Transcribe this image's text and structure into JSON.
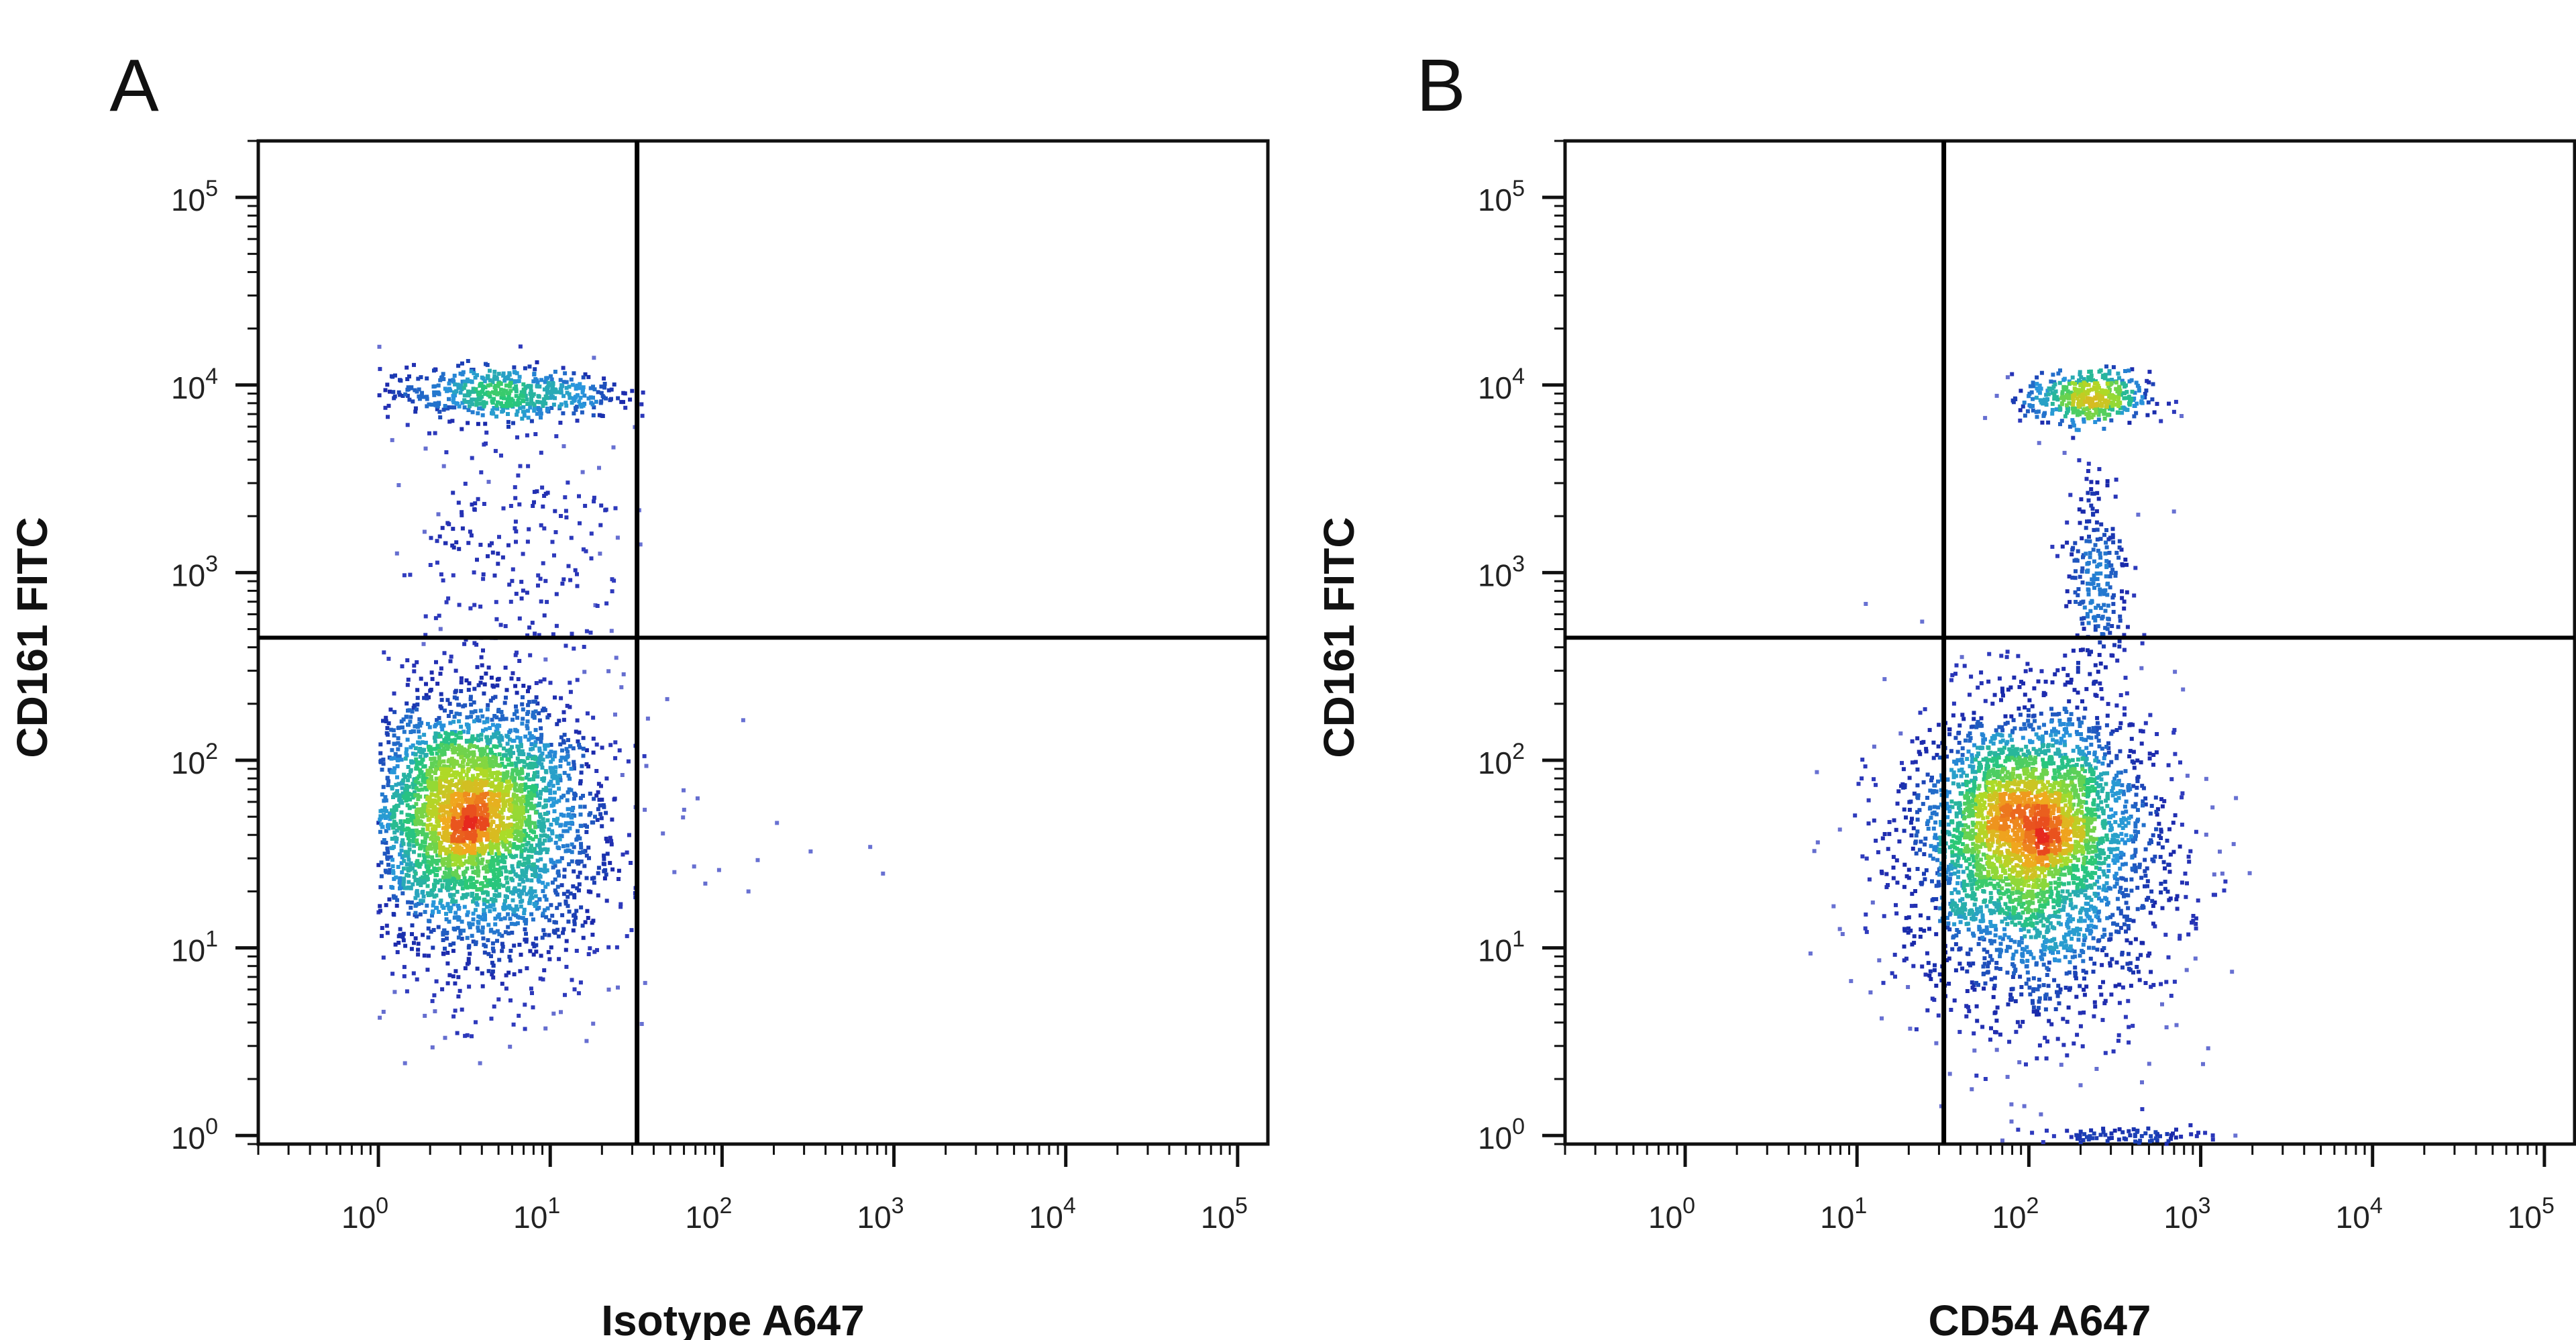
{
  "chart_data": [
    {
      "type": "scatter",
      "panel_label": "A",
      "xlabel": "Isotype A647",
      "ylabel": "CD161 FITC",
      "x_scale": "log",
      "y_scale": "log",
      "x_range": [
        0.2,
        150000
      ],
      "y_range": [
        0.9,
        200000
      ],
      "x_ticks": [
        1,
        10,
        100,
        1000,
        10000,
        100000
      ],
      "x_tick_labels": [
        [
          "10",
          "0"
        ],
        [
          "10",
          "1"
        ],
        [
          "10",
          "2"
        ],
        [
          "10",
          "3"
        ],
        [
          "10",
          "4"
        ],
        [
          "10",
          "5"
        ]
      ],
      "y_ticks": [
        1,
        10,
        100,
        1000,
        10000,
        100000
      ],
      "y_tick_labels": [
        [
          "10",
          "0"
        ],
        [
          "10",
          "1"
        ],
        [
          "10",
          "2"
        ],
        [
          "10",
          "3"
        ],
        [
          "10",
          "4"
        ],
        [
          "10",
          "5"
        ]
      ],
      "quadrant_gate": {
        "x": 32,
        "y": 450
      },
      "populations": [
        {
          "cx": 3.2,
          "cy": 55,
          "sx": 0.3,
          "sy": 0.28,
          "n": 2200,
          "xmin": 1.0,
          "xmax": 36
        },
        {
          "cx": 4.5,
          "cy": 35,
          "sx": 0.38,
          "sy": 0.42,
          "n": 1400,
          "xmin": 1.0,
          "xmax": 38
        },
        {
          "cx": 5.0,
          "cy": 9000,
          "sx": 0.35,
          "sy": 0.07,
          "n": 550,
          "xmin": 1.0,
          "xmax": 35
        },
        {
          "cx": 6.0,
          "cy": 1500,
          "sx": 0.35,
          "sy": 0.38,
          "n": 220,
          "xmin": 1.0,
          "xmax": 35
        },
        {
          "cx": 60,
          "cy": 40,
          "sx": 0.45,
          "sy": 0.35,
          "n": 30,
          "xmin": 32,
          "xmax": 1500
        }
      ]
    },
    {
      "type": "scatter",
      "panel_label": "B",
      "xlabel": "CD54 A647",
      "ylabel": "CD161 FITC",
      "x_scale": "log",
      "y_scale": "log",
      "x_range": [
        0.2,
        150000
      ],
      "y_range": [
        0.9,
        200000
      ],
      "x_ticks": [
        1,
        10,
        100,
        1000,
        10000,
        100000
      ],
      "x_tick_labels": [
        [
          "10",
          "0"
        ],
        [
          "10",
          "1"
        ],
        [
          "10",
          "2"
        ],
        [
          "10",
          "3"
        ],
        [
          "10",
          "4"
        ],
        [
          "10",
          "5"
        ]
      ],
      "y_ticks": [
        1,
        10,
        100,
        1000,
        10000,
        100000
      ],
      "y_tick_labels": [
        [
          "10",
          "0"
        ],
        [
          "10",
          "1"
        ],
        [
          "10",
          "2"
        ],
        [
          "10",
          "3"
        ],
        [
          "10",
          "4"
        ],
        [
          "10",
          "5"
        ]
      ],
      "quadrant_gate": {
        "x": 32,
        "y": 450
      },
      "populations": [
        {
          "cx": 100,
          "cy": 45,
          "sx": 0.3,
          "sy": 0.28,
          "n": 2200,
          "xmin": 6,
          "xmax": 2500
        },
        {
          "cx": 110,
          "cy": 25,
          "sx": 0.42,
          "sy": 0.45,
          "n": 1600,
          "xmin": 5,
          "xmax": 2500
        },
        {
          "cx": 220,
          "cy": 8500,
          "sx": 0.18,
          "sy": 0.07,
          "n": 450,
          "xmin": 40,
          "xmax": 1500
        },
        {
          "cx": 250,
          "cy": 900,
          "sx": 0.1,
          "sy": 0.35,
          "n": 260,
          "xmin": 60,
          "xmax": 800
        },
        {
          "cx": 350,
          "cy": 1,
          "sx": 0.25,
          "sy": 0.02,
          "n": 80,
          "xmin": 40,
          "xmax": 3000
        }
      ]
    }
  ]
}
